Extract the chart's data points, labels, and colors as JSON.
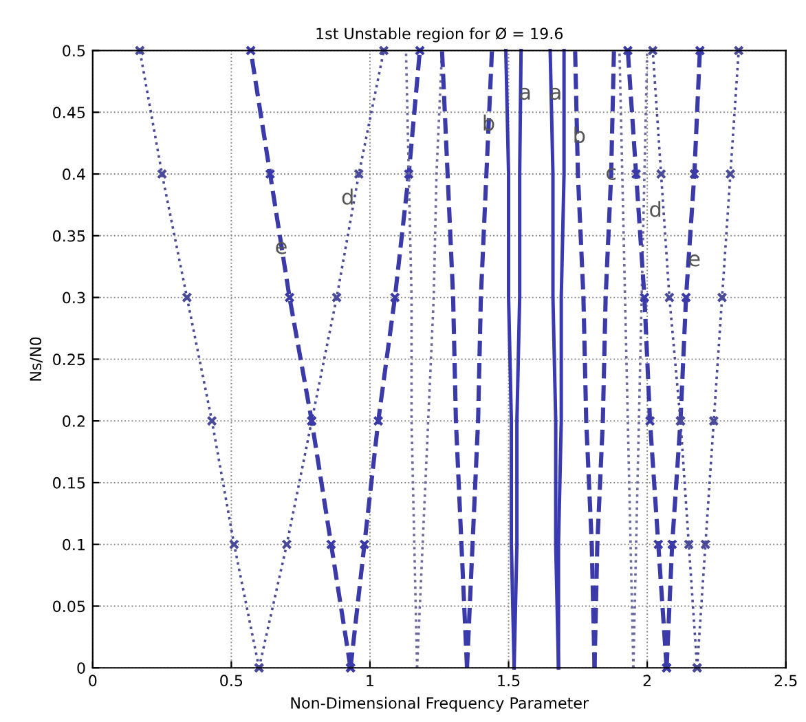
{
  "chart_data": {
    "type": "line",
    "title": "1st Unstable region for Ø = 19.6",
    "xlabel": "Non-Dimensional Frequency Parameter",
    "ylabel": "Ns/N0",
    "xlim": [
      0,
      2.5
    ],
    "ylim": [
      0,
      0.5
    ],
    "xticks": [
      0,
      0.5,
      1,
      1.5,
      2,
      2.5
    ],
    "yticks": [
      0,
      0.05,
      0.1,
      0.15,
      0.2,
      0.25,
      0.3,
      0.35,
      0.4,
      0.45,
      0.5
    ],
    "grid": true,
    "legend": false,
    "series": [
      {
        "x": [
          0.6,
          0.51,
          0.43,
          0.34,
          0.25,
          0.17
        ],
        "values": [
          0,
          0.1,
          0.2,
          0.3,
          0.4,
          0.5
        ],
        "color": "#4a4a9a",
        "line_style": "dotted",
        "marker": "cross"
      },
      {
        "x": [
          0.6,
          0.7,
          0.79,
          0.88,
          0.96,
          1.05
        ],
        "values": [
          0,
          0.1,
          0.2,
          0.3,
          0.4,
          0.5
        ],
        "color": "#4a4a9a",
        "line_style": "dotted",
        "marker": "cross"
      },
      {
        "x": [
          0.93,
          0.86,
          0.79,
          0.71,
          0.64,
          0.57
        ],
        "values": [
          0,
          0.1,
          0.2,
          0.3,
          0.4,
          0.5
        ],
        "color": "#3a3aa8",
        "line_style": "dashed",
        "marker": "cross"
      },
      {
        "x": [
          0.93,
          0.98,
          1.03,
          1.09,
          1.14,
          1.18
        ],
        "values": [
          0,
          0.1,
          0.2,
          0.3,
          0.4,
          0.5
        ],
        "color": "#3a3aa8",
        "line_style": "dashed",
        "marker": "cross"
      },
      {
        "x": [
          1.17,
          1.16,
          1.15,
          1.15,
          1.14,
          1.13
        ],
        "values": [
          0,
          0.1,
          0.2,
          0.3,
          0.4,
          0.5
        ],
        "color": "#6a6aa0",
        "line_style": "dotted",
        "marker": "none"
      },
      {
        "x": [
          1.17,
          1.19,
          1.21,
          1.23,
          1.24,
          1.26
        ],
        "values": [
          0,
          0.1,
          0.2,
          0.3,
          0.4,
          0.5
        ],
        "color": "#6a6aa0",
        "line_style": "dotted",
        "marker": "none"
      },
      {
        "x": [
          1.35,
          1.33,
          1.31,
          1.3,
          1.28,
          1.26
        ],
        "values": [
          0,
          0.1,
          0.2,
          0.3,
          0.4,
          0.5
        ],
        "color": "#3a3aa8",
        "line_style": "dashed",
        "marker": "none"
      },
      {
        "x": [
          1.35,
          1.37,
          1.39,
          1.4,
          1.42,
          1.44
        ],
        "values": [
          0,
          0.1,
          0.2,
          0.3,
          0.4,
          0.5
        ],
        "color": "#3a3aa8",
        "line_style": "dashed",
        "marker": "none"
      },
      {
        "x": [
          1.52,
          1.51,
          1.51,
          1.5,
          1.5,
          1.49
        ],
        "values": [
          0,
          0.1,
          0.2,
          0.3,
          0.4,
          0.5
        ],
        "color": "#3a3ab0",
        "line_style": "solid",
        "marker": "none"
      },
      {
        "x": [
          1.52,
          1.53,
          1.53,
          1.54,
          1.54,
          1.545
        ],
        "values": [
          0,
          0.1,
          0.2,
          0.3,
          0.4,
          0.5
        ],
        "color": "#3a3ab0",
        "line_style": "solid",
        "marker": "none"
      },
      {
        "x": [
          1.68,
          1.67,
          1.67,
          1.66,
          1.66,
          1.65
        ],
        "values": [
          0,
          0.1,
          0.2,
          0.3,
          0.4,
          0.5
        ],
        "color": "#3a3ab0",
        "line_style": "solid",
        "marker": "none"
      },
      {
        "x": [
          1.68,
          1.68,
          1.69,
          1.69,
          1.7,
          1.7
        ],
        "values": [
          0,
          0.1,
          0.2,
          0.3,
          0.4,
          0.5
        ],
        "color": "#3a3ab0",
        "line_style": "solid",
        "marker": "none"
      },
      {
        "x": [
          1.81,
          1.8,
          1.78,
          1.77,
          1.75,
          1.74
        ],
        "values": [
          0,
          0.1,
          0.2,
          0.3,
          0.4,
          0.5
        ],
        "color": "#3a3aa8",
        "line_style": "dashed",
        "marker": "none"
      },
      {
        "x": [
          1.81,
          1.82,
          1.84,
          1.85,
          1.87,
          1.88
        ],
        "values": [
          0,
          0.1,
          0.2,
          0.3,
          0.4,
          0.5
        ],
        "color": "#3a3aa8",
        "line_style": "dashed",
        "marker": "none"
      },
      {
        "x": [
          1.95,
          1.94,
          1.93,
          1.92,
          1.91,
          1.9
        ],
        "values": [
          0,
          0.1,
          0.2,
          0.3,
          0.4,
          0.5
        ],
        "color": "#6a6aa0",
        "line_style": "dotted",
        "marker": "none"
      },
      {
        "x": [
          1.95,
          1.96,
          1.97,
          1.98,
          1.99,
          2.0
        ],
        "values": [
          0,
          0.1,
          0.2,
          0.3,
          0.4,
          0.5
        ],
        "color": "#6a6aa0",
        "line_style": "dotted",
        "marker": "none"
      },
      {
        "x": [
          2.07,
          2.04,
          2.01,
          1.99,
          1.96,
          1.93
        ],
        "values": [
          0,
          0.1,
          0.2,
          0.3,
          0.4,
          0.5
        ],
        "color": "#3a3aa8",
        "line_style": "dashed",
        "marker": "cross"
      },
      {
        "x": [
          2.07,
          2.09,
          2.12,
          2.14,
          2.17,
          2.19
        ],
        "values": [
          0,
          0.1,
          0.2,
          0.3,
          0.4,
          0.5
        ],
        "color": "#3a3aa8",
        "line_style": "dashed",
        "marker": "cross"
      },
      {
        "x": [
          2.18,
          2.15,
          2.12,
          2.08,
          2.05,
          2.02
        ],
        "values": [
          0,
          0.1,
          0.2,
          0.3,
          0.4,
          0.5
        ],
        "color": "#4a4a9a",
        "line_style": "dotted",
        "marker": "cross"
      },
      {
        "x": [
          2.18,
          2.21,
          2.24,
          2.27,
          2.3,
          2.33
        ],
        "values": [
          0,
          0.1,
          0.2,
          0.3,
          0.4,
          0.5
        ],
        "color": "#4a4a9a",
        "line_style": "dotted",
        "marker": "cross"
      }
    ],
    "annotations": [
      {
        "text": "a",
        "x": 1.56,
        "y": 0.465
      },
      {
        "text": "a",
        "x": 1.67,
        "y": 0.465
      },
      {
        "text": "b",
        "x": 1.428,
        "y": 0.44
      },
      {
        "text": "b",
        "x": 1.755,
        "y": 0.43
      },
      {
        "text": "c",
        "x": 1.87,
        "y": 0.4
      },
      {
        "text": "d",
        "x": 0.92,
        "y": 0.38
      },
      {
        "text": "d",
        "x": 2.03,
        "y": 0.37
      },
      {
        "text": "e",
        "x": 0.68,
        "y": 0.34
      },
      {
        "text": "e",
        "x": 2.17,
        "y": 0.33
      }
    ]
  }
}
